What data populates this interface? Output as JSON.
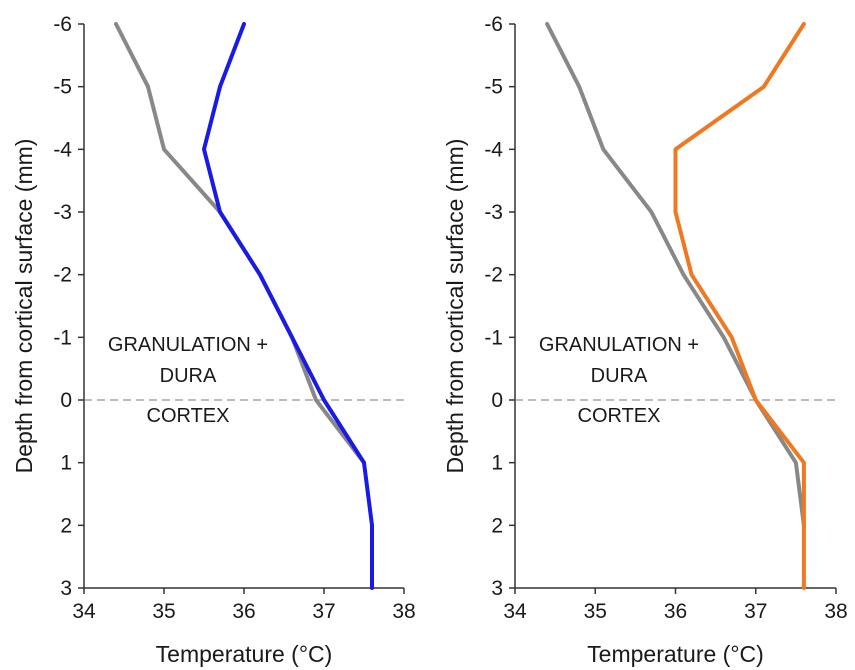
{
  "chart_data": [
    {
      "type": "line",
      "xlabel": "Temperature (°C)",
      "ylabel": "Depth from cortical surface (mm)",
      "xlim": [
        34,
        38
      ],
      "ylim": [
        -6,
        3
      ],
      "y_inverted": true,
      "x_ticks": [
        "34",
        "35",
        "36",
        "37",
        "38"
      ],
      "y_ticks": [
        "-6",
        "-5",
        "-4",
        "-3",
        "-2",
        "-1",
        "0",
        "1",
        "2",
        "3"
      ],
      "reference_line": {
        "y": 0,
        "style": "dashed"
      },
      "annotations": [
        "GRANULATION +",
        "DURA",
        "CORTEX"
      ],
      "grid": false,
      "series": [
        {
          "color": "#888888",
          "points": [
            [
              34.4,
              -6
            ],
            [
              34.8,
              -5
            ],
            [
              35.0,
              -4
            ],
            [
              35.7,
              -3
            ],
            [
              36.2,
              -2
            ],
            [
              36.6,
              -1
            ],
            [
              36.9,
              0
            ],
            [
              37.5,
              1
            ]
          ]
        },
        {
          "color": "#1a1ae6",
          "points": [
            [
              36.0,
              -6
            ],
            [
              35.7,
              -5
            ],
            [
              35.5,
              -4
            ],
            [
              35.7,
              -3
            ],
            [
              36.2,
              -2
            ],
            [
              36.6,
              -1
            ],
            [
              37.0,
              0
            ],
            [
              37.5,
              1
            ],
            [
              37.6,
              2
            ],
            [
              37.6,
              3
            ]
          ]
        }
      ]
    },
    {
      "type": "line",
      "xlabel": "Temperature (°C)",
      "ylabel": "Depth from cortical surface (mm)",
      "xlim": [
        34,
        38
      ],
      "ylim": [
        -6,
        3
      ],
      "y_inverted": true,
      "x_ticks": [
        "34",
        "35",
        "36",
        "37",
        "38"
      ],
      "y_ticks": [
        "-6",
        "-5",
        "-4",
        "-3",
        "-2",
        "-1",
        "0",
        "1",
        "2",
        "3"
      ],
      "reference_line": {
        "y": 0,
        "style": "dashed"
      },
      "annotations": [
        "GRANULATION +",
        "DURA",
        "CORTEX"
      ],
      "grid": false,
      "series": [
        {
          "color": "#888888",
          "points": [
            [
              34.4,
              -6
            ],
            [
              34.8,
              -5
            ],
            [
              35.1,
              -4
            ],
            [
              35.7,
              -3
            ],
            [
              36.1,
              -2
            ],
            [
              36.6,
              -1
            ],
            [
              37.0,
              0
            ],
            [
              37.5,
              1
            ],
            [
              37.6,
              2
            ]
          ]
        },
        {
          "color": "#f07820",
          "points": [
            [
              37.6,
              -6
            ],
            [
              37.1,
              -5
            ],
            [
              36.0,
              -4
            ],
            [
              36.0,
              -3
            ],
            [
              36.2,
              -2
            ],
            [
              36.7,
              -1
            ],
            [
              37.0,
              0
            ],
            [
              37.6,
              1
            ],
            [
              37.6,
              2
            ],
            [
              37.6,
              3
            ]
          ]
        }
      ]
    }
  ]
}
